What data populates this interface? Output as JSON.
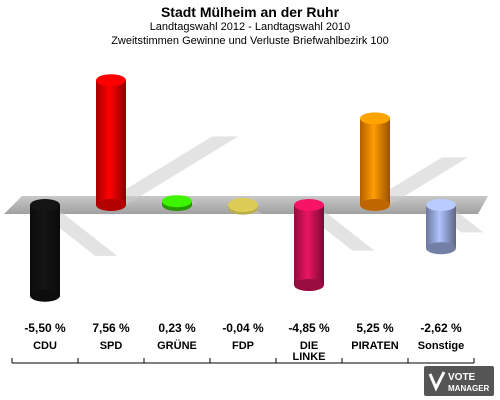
{
  "header": {
    "title": "Stadt Mülheim an der Ruhr",
    "subtitle1": "Landtagswahl 2012 - Landtagswahl 2010",
    "subtitle2": "Zweitstimmen Gewinne und Verluste Briefwahlbezirk 100"
  },
  "chart_data": {
    "type": "bar",
    "title": "Stadt Mülheim an der Ruhr",
    "subtitle": "Landtagswahl 2012 - Landtagswahl 2010 / Zweitstimmen Gewinne und Verluste Briefwahlbezirk 100",
    "categories": [
      "CDU",
      "SPD",
      "GRÜNE",
      "FDP",
      "DIE LINKE",
      "PIRATEN",
      "Sonstige"
    ],
    "category_lines": [
      [
        "CDU"
      ],
      [
        "SPD"
      ],
      [
        "GRÜNE"
      ],
      [
        "FDP"
      ],
      [
        "DIE",
        "LINKE"
      ],
      [
        "PIRATEN"
      ],
      [
        "Sonstige"
      ]
    ],
    "values": [
      -5.5,
      7.56,
      0.23,
      -0.04,
      -4.85,
      5.25,
      -2.62
    ],
    "value_labels": [
      "-5,50 %",
      "7,56 %",
      "0,23 %",
      "-0,04 %",
      "-4,85 %",
      "5,25 %",
      "-2,62 %"
    ],
    "colors": [
      "#111111",
      "#ee0000",
      "#33cc00",
      "#ddcc55",
      "#cc1155",
      "#ff8800",
      "#99aadd"
    ],
    "baseline": 0
  },
  "logo": {
    "line1": "VOTE",
    "line2": "MANAGER"
  }
}
